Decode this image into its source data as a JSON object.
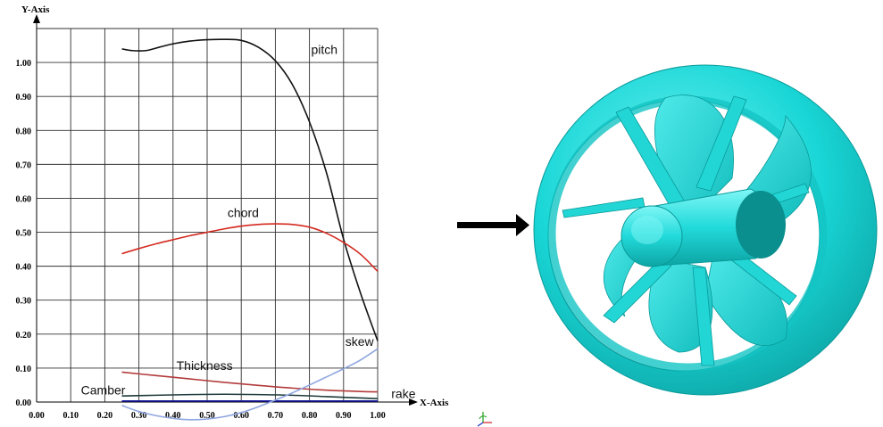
{
  "chart_data": {
    "type": "line",
    "xlabel": "X-Axis",
    "ylabel": "Y-Axis",
    "xlim": [
      0,
      1.0
    ],
    "ylim": [
      0,
      1.1
    ],
    "x_ticks": [
      "0.00",
      "0.10",
      "0.20",
      "0.30",
      "0.40",
      "0.50",
      "0.60",
      "0.70",
      "0.80",
      "0.90",
      "1.00"
    ],
    "y_ticks": [
      "0.00",
      "0.10",
      "0.20",
      "0.30",
      "0.40",
      "0.50",
      "0.60",
      "0.70",
      "0.80",
      "0.90",
      "1.00"
    ],
    "grid": true,
    "series": [
      {
        "name": "pitch",
        "color": "#111111",
        "x": [
          0.25,
          0.28,
          0.32,
          0.36,
          0.4,
          0.45,
          0.5,
          0.55,
          0.6,
          0.65,
          0.7,
          0.75,
          0.8,
          0.85,
          0.9,
          0.95,
          1.0
        ],
        "y": [
          1.04,
          1.035,
          1.035,
          1.045,
          1.055,
          1.063,
          1.067,
          1.068,
          1.065,
          1.045,
          1.005,
          0.935,
          0.825,
          0.675,
          0.48,
          0.32,
          0.18
        ]
      },
      {
        "name": "chord",
        "color": "#d42a20",
        "x": [
          0.25,
          0.3,
          0.35,
          0.4,
          0.45,
          0.5,
          0.55,
          0.6,
          0.65,
          0.7,
          0.75,
          0.8,
          0.85,
          0.9,
          0.95,
          1.0
        ],
        "y": [
          0.437,
          0.452,
          0.466,
          0.478,
          0.49,
          0.5,
          0.51,
          0.518,
          0.523,
          0.525,
          0.523,
          0.515,
          0.497,
          0.47,
          0.435,
          0.385
        ]
      },
      {
        "name": "Thickness",
        "color": "#b33b3b",
        "x": [
          0.25,
          0.35,
          0.45,
          0.55,
          0.65,
          0.75,
          0.85,
          0.95,
          1.0
        ],
        "y": [
          0.088,
          0.078,
          0.068,
          0.058,
          0.049,
          0.041,
          0.035,
          0.031,
          0.03
        ]
      },
      {
        "name": "Camber",
        "color": "#1e3a3a",
        "x": [
          0.25,
          0.35,
          0.45,
          0.55,
          0.65,
          0.75,
          0.85,
          0.95,
          1.0
        ],
        "y": [
          0.018,
          0.02,
          0.022,
          0.023,
          0.022,
          0.02,
          0.016,
          0.012,
          0.01
        ]
      },
      {
        "name": "rake",
        "color": "#1a1aa8",
        "x": [
          0.25,
          0.5,
          0.75,
          1.0
        ],
        "y": [
          0.003,
          0.003,
          0.003,
          0.003
        ]
      },
      {
        "name": "skew",
        "color": "#8fa6e0",
        "x": [
          0.25,
          0.3,
          0.35,
          0.4,
          0.45,
          0.5,
          0.55,
          0.6,
          0.65,
          0.7,
          0.75,
          0.8,
          0.85,
          0.9,
          0.95,
          1.0
        ],
        "y": [
          -0.01,
          -0.028,
          -0.04,
          -0.048,
          -0.052,
          -0.05,
          -0.043,
          -0.031,
          -0.014,
          0.006,
          0.027,
          0.05,
          0.074,
          0.098,
          0.124,
          0.157
        ]
      }
    ],
    "annotations": [
      {
        "text": "pitch",
        "x": 0.805,
        "y": 1.025
      },
      {
        "text": "chord",
        "x": 0.56,
        "y": 0.545
      },
      {
        "text": "Thickness",
        "x": 0.41,
        "y": 0.095
      },
      {
        "text": "Camber",
        "x": 0.13,
        "y": 0.022
      },
      {
        "text": "skew",
        "x": 0.905,
        "y": 0.165
      },
      {
        "text": "rake",
        "x": 1.04,
        "y": 0.012
      }
    ]
  },
  "illustration": {
    "arrow_color": "#000000",
    "propeller_color": "#19d6d6"
  }
}
